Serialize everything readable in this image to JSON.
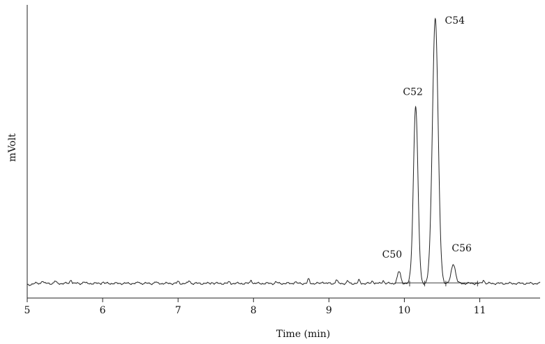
{
  "chart_data": {
    "type": "line",
    "title": "",
    "xlabel": "Time (min)",
    "ylabel": "mVolt",
    "xlim": [
      5,
      11.8
    ],
    "ylim": [
      0,
      100
    ],
    "x_ticks": [
      "5",
      "6",
      "7",
      "8",
      "9",
      "10",
      "11"
    ],
    "grid": false,
    "legend": "none",
    "trace_color": "#222222",
    "background_level": 5.5,
    "noise_points": [
      {
        "x": 5.2,
        "y": 1.0
      },
      {
        "x": 5.37,
        "y": 0.8
      },
      {
        "x": 5.58,
        "y": 1.4
      },
      {
        "x": 5.75,
        "y": 0.6
      },
      {
        "x": 6.0,
        "y": 0.5
      },
      {
        "x": 6.48,
        "y": 0.5
      },
      {
        "x": 6.7,
        "y": 0.5
      },
      {
        "x": 7.0,
        "y": 0.6
      },
      {
        "x": 7.15,
        "y": 1.0
      },
      {
        "x": 7.45,
        "y": 0.4
      },
      {
        "x": 7.68,
        "y": 0.5
      },
      {
        "x": 7.97,
        "y": 1.2
      },
      {
        "x": 8.3,
        "y": 0.5
      },
      {
        "x": 8.55,
        "y": 0.6
      },
      {
        "x": 8.73,
        "y": 1.5
      },
      {
        "x": 8.92,
        "y": 0.7
      },
      {
        "x": 9.1,
        "y": 1.3
      },
      {
        "x": 9.25,
        "y": 0.8
      },
      {
        "x": 9.4,
        "y": 1.1
      },
      {
        "x": 9.58,
        "y": 1.0
      },
      {
        "x": 9.72,
        "y": 1.1
      },
      {
        "x": 10.08,
        "y": 0.8
      },
      {
        "x": 10.32,
        "y": 0.5
      },
      {
        "x": 11.05,
        "y": 1.3
      }
    ],
    "peaks": [
      {
        "name": "C50",
        "rt": 9.93,
        "height": 4.2,
        "width": 0.022
      },
      {
        "name": "C52",
        "rt": 10.15,
        "height": 63.5,
        "width": 0.03
      },
      {
        "name": "C54",
        "rt": 10.41,
        "height": 95.0,
        "width": 0.038
      },
      {
        "name": "C56",
        "rt": 10.65,
        "height": 7.0,
        "width": 0.028
      }
    ],
    "integration_baseline": {
      "x_start": 9.87,
      "x_end": 10.98,
      "y": 0.2
    },
    "dividers": [
      10.07,
      10.27,
      10.55,
      10.97
    ]
  }
}
